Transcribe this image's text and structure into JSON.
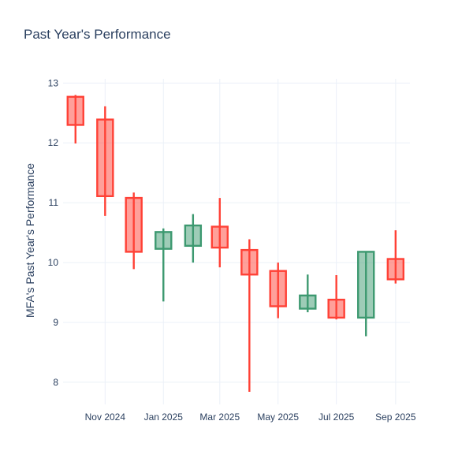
{
  "chart": {
    "title": "Past Year's Performance",
    "y_axis_title": "MFA's Past Year's Performance"
  },
  "chart_data": {
    "type": "candlestick",
    "title": "Past Year's Performance",
    "xlabel": "",
    "ylabel": "MFA's Past Year's Performance",
    "categories": [
      "Oct 2024",
      "Nov 2024",
      "Dec 2024",
      "Jan 2025",
      "Feb 2025",
      "Mar 2025",
      "Apr 2025",
      "May 2025",
      "Jun 2025",
      "Jul 2025",
      "Aug 2025",
      "Sep 2025"
    ],
    "day_offsets": [
      0,
      31,
      61,
      92,
      123,
      151,
      182,
      212,
      243,
      273,
      304,
      335
    ],
    "series": [
      {
        "name": "open",
        "values": [
          12.77,
          12.39,
          11.08,
          10.23,
          10.28,
          10.6,
          10.21,
          9.86,
          9.23,
          9.38,
          9.08,
          10.06
        ]
      },
      {
        "name": "high",
        "values": [
          12.8,
          12.61,
          11.17,
          10.57,
          10.81,
          11.08,
          10.39,
          10.0,
          9.8,
          9.79,
          10.18,
          10.54
        ]
      },
      {
        "name": "low",
        "values": [
          11.99,
          10.78,
          9.89,
          9.35,
          10.0,
          9.92,
          7.84,
          9.07,
          9.17,
          9.05,
          8.77,
          9.65
        ]
      },
      {
        "name": "close",
        "values": [
          12.3,
          11.11,
          10.18,
          10.51,
          10.62,
          10.25,
          9.8,
          9.27,
          9.45,
          9.08,
          10.18,
          9.72
        ]
      }
    ],
    "x_tick_labels": [
      "Nov 2024",
      "Jan 2025",
      "Mar 2025",
      "May 2025",
      "Jul 2025",
      "Sep 2025"
    ],
    "x_tick_days": [
      31,
      92,
      151,
      212,
      273,
      335
    ],
    "y_ticks": [
      8,
      9,
      10,
      11,
      12,
      13
    ],
    "ylim": [
      7.63,
      13.07
    ],
    "xlim_days": [
      -13,
      350
    ],
    "grid": true,
    "legend": false,
    "colors": {
      "increasing_line": "#3D9970",
      "increasing_fill": "rgba(61,153,112,0.5)",
      "decreasing_line": "#FF4136",
      "decreasing_fill": "rgba(255,65,54,0.5)",
      "gridline": "#EBF0F8",
      "text": "#2a3f5f",
      "background": "#ffffff"
    }
  }
}
